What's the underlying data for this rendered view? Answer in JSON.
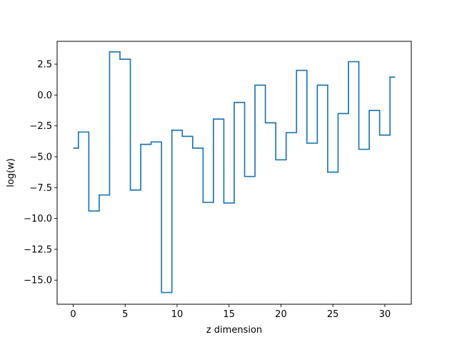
{
  "chart_data": {
    "type": "line",
    "drawstyle": "steps-mid",
    "xlabel": "z dimension",
    "ylabel": "log(w)",
    "xlim": [
      -1.55,
      32.55
    ],
    "ylim": [
      -16.95,
      4.35
    ],
    "xticks": [
      0,
      5,
      10,
      15,
      20,
      25,
      30
    ],
    "xtick_labels": [
      "0",
      "5",
      "10",
      "15",
      "20",
      "25",
      "30"
    ],
    "yticks": [
      2.5,
      0.0,
      -2.5,
      -5.0,
      -7.5,
      -10.0,
      -12.5,
      -15.0
    ],
    "ytick_labels": [
      "2.5",
      "0.0",
      "−2.5",
      "−5.0",
      "−7.5",
      "−10.0",
      "−12.5",
      "−15.0"
    ],
    "grid": false,
    "color": "#1f77b4",
    "series": [
      {
        "x": [
          0,
          1,
          2,
          3,
          4,
          5,
          6,
          7,
          8,
          9,
          10,
          11,
          12,
          13,
          14,
          15,
          16,
          17,
          18,
          19,
          20,
          21,
          22,
          23,
          24,
          25,
          26,
          27,
          28,
          29,
          30,
          31
        ],
        "values": [
          -4.3,
          -3.0,
          -9.4,
          -8.1,
          3.5,
          2.9,
          -7.7,
          -4.0,
          -3.8,
          -16.0,
          -2.85,
          -3.35,
          -4.3,
          -8.7,
          -1.95,
          -8.75,
          -0.6,
          -6.6,
          0.8,
          -2.25,
          -5.25,
          -3.05,
          2.0,
          -3.9,
          0.8,
          -6.25,
          -1.5,
          2.7,
          -4.4,
          -1.25,
          -3.25,
          1.45
        ]
      }
    ]
  }
}
